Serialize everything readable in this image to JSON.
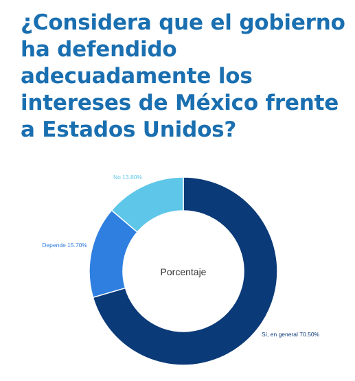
{
  "title": "¿Considera que el gobierno ha defendido adecuadamente los intereses de México frente a Estados Unidos?",
  "colors": {
    "title": "#1a6fb0",
    "si": "#0b3a78",
    "depende": "#2f7fe0",
    "no": "#5ec6e8"
  },
  "chart_data": {
    "type": "pie",
    "center_label": "Porcentaje",
    "slices": [
      {
        "label": "Sí, en general",
        "value": 70.5,
        "text": "Sí, en general 70.50%",
        "color": "#0b3a78"
      },
      {
        "label": "Depende",
        "value": 15.7,
        "text": "Depende 15.70%",
        "color": "#2f7fe0"
      },
      {
        "label": "No",
        "value": 13.8,
        "text": "No 13.80%",
        "color": "#5ec6e8"
      }
    ]
  }
}
